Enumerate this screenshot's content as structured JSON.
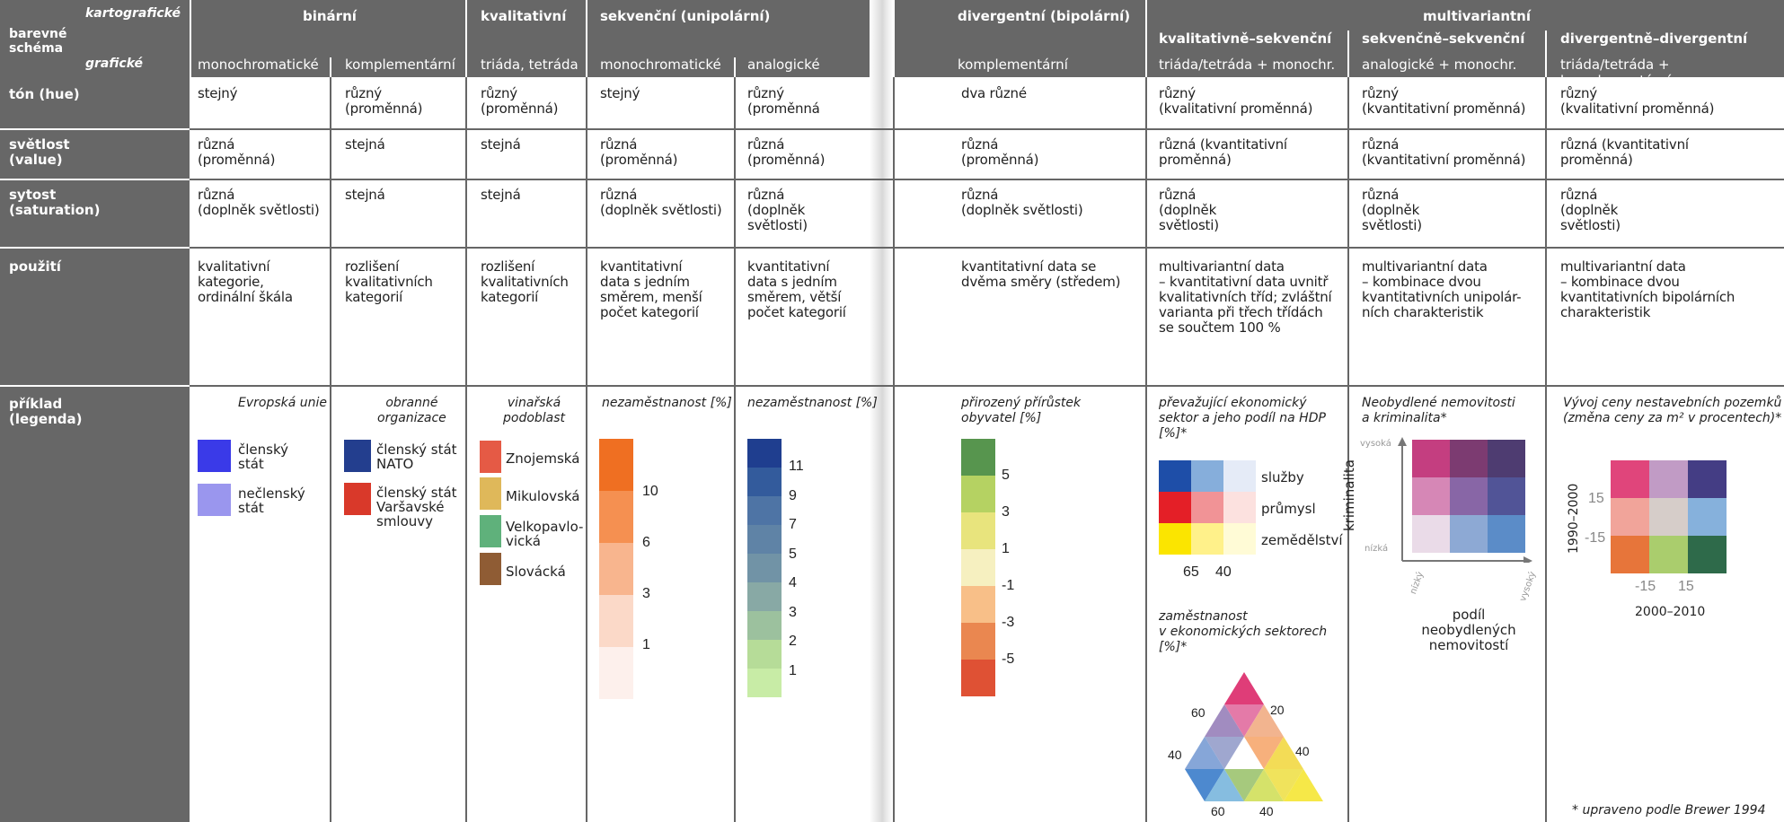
{
  "header": {
    "corner_top": "kartografické",
    "corner_mid": "barevné schéma",
    "corner_bot": "grafické",
    "groups": [
      "binární",
      "kvalitativní",
      "sekvenční (unipolární)",
      "divergentní (bipolární)",
      "multivariantní"
    ],
    "sub_groups": [
      "kvalitativně–sekvenční",
      "sekvenčně–sekvenční",
      "divergentně–divergentní"
    ],
    "cols": [
      "monochromatické",
      "komplementární",
      "triáda, tetráda",
      "monochromatické",
      "analogické",
      "komplementární",
      "triáda/tetráda + monochr.",
      "analogické + monochr.",
      "triáda/tetráda + komplementární"
    ]
  },
  "rows": {
    "ton": {
      "label_1": "tón (hue)",
      "cells": [
        "stejný",
        "různý\n(proměnná)",
        "různý\n(proměnná)",
        "stejný",
        "různý\n(proměnná",
        "dva různé",
        "různý\n(kvalitativní proměnná)",
        "různý\n(kvantitativní proměnná)",
        "různý\n(kvalitativní proměnná)"
      ]
    },
    "svetlost": {
      "label_1": "světlost",
      "label_2": "(value)",
      "cells": [
        "různá\n(proměnná)",
        "stejná",
        "stejná",
        "různá\n(proměnná)",
        "různá\n(proměnná)",
        "různá\n(proměnná)",
        "různá (kvantitativní\nproměnná)",
        "různá\n(kvantitativní proměnná)",
        "různá (kvantitativní\nproměnná)"
      ]
    },
    "sytost": {
      "label_1": "sytost",
      "label_2": "(saturation)",
      "cells": [
        "různá\n(doplněk světlosti)",
        "stejná",
        "stejná",
        "různá\n(doplněk světlosti)",
        "různá\n(doplněk\nsvětlosti)",
        "různá\n(doplněk světlosti)",
        "různá\n(doplněk\nsvětlosti)",
        "různá\n(doplněk\nsvětlosti)",
        "různá\n(doplněk\nsvětlosti)"
      ]
    },
    "pouziti": {
      "label_1": "použití",
      "cells": [
        "kvalitativní\nkategorie,\nordinální škála",
        "rozlišení\nkvalitativních\nkategorií",
        "rozlišení\nkvalitativních\nkategorií",
        "kvantitativní\ndata s jedním\nsměrem, menší\npočet kategorií",
        "kvantitativní\ndata s jedním\nsměrem, větší\npočet kategorií",
        "kvantitativní data se\ndvěma směry (středem)",
        "multivariantní data\n– kvantitativní data uvnitř\nkvalitativních tříd; zvláštní\nvarianta při třech třídách\nse součtem 100 %",
        "multivariantní data\n– kombinace dvou\nkvantitativních unipolár-\nních charakteristik",
        "multivariantní data\n– kombinace dvou\nkvantitativních bipolárních\ncharakteristik"
      ]
    },
    "priklad": {
      "label_1": "příklad",
      "label_2": "(legenda)"
    }
  },
  "examples": {
    "eu": {
      "title": "Evropská unie",
      "items": [
        {
          "label": "členský\nstát",
          "color": "#3a3ae8"
        },
        {
          "label": "nečlenský\nstát",
          "color": "#9a96ee"
        }
      ]
    },
    "nato": {
      "title": "obranné\norganizace",
      "items": [
        {
          "label": "členský stát\nNATO",
          "color": "#233e8e"
        },
        {
          "label": "členský stát\nVaršavské\nsmlouvy",
          "color": "#d9392a"
        }
      ]
    },
    "vino": {
      "title": "vinařská\npodoblast",
      "items": [
        {
          "label": "Znojemská",
          "color": "#e55a45"
        },
        {
          "label": "Mikulovská",
          "color": "#dfb85a"
        },
        {
          "label": "Velkopavlo-\nvická",
          "color": "#5fb17b"
        },
        {
          "label": "Slovácká",
          "color": "#8f5c34"
        }
      ]
    },
    "nezam1": {
      "title": "nezaměstnanost [%]",
      "colors": [
        "#ef6f22",
        "#f59051",
        "#f8b58e",
        "#fbd9c8",
        "#fdf0ec"
      ],
      "labels": [
        "10",
        "6",
        "3",
        "1"
      ]
    },
    "nezam2": {
      "title": "nezaměstnanost [%]",
      "colors": [
        "#1f3e8f",
        "#335b9c",
        "#4e74a5",
        "#5f83a6",
        "#7193a6",
        "#88a9a5",
        "#9cc19e",
        "#b6dc98",
        "#c8eca6"
      ],
      "labels": [
        "11",
        "9",
        "7",
        "5",
        "4",
        "3",
        "2",
        "1"
      ]
    },
    "prirustek": {
      "title": "přirozený přírůstek\nobyvatel [%]",
      "colors": [
        "#57954e",
        "#b5d262",
        "#e8e47d",
        "#f6f0c0",
        "#f8bf88",
        "#ea8750",
        "#df5134"
      ],
      "labels": [
        "5",
        "3",
        "1",
        "-1",
        "-3",
        "-5"
      ]
    },
    "sektor": {
      "title": "převažující ekonomický\nsektor a jeho podíl na HDP\n[%]*",
      "colors": [
        [
          "#1e4ea8",
          "#86aedb",
          "#e5ebf7"
        ],
        [
          "#e41f27",
          "#f19396",
          "#fce1df"
        ],
        [
          "#fbe500",
          "#fff18a",
          "#fffbd6"
        ]
      ],
      "rows": [
        "služby",
        "průmysl",
        "zemědělství"
      ],
      "cols": [
        "65",
        "40"
      ]
    },
    "zamestnanost": {
      "title": "zaměstnanost\nv ekonomických sektorech\n[%]*",
      "labels": [
        "60",
        "20",
        "40",
        "40",
        "60",
        "40"
      ]
    },
    "nemovitosti": {
      "title": "Neobydlené nemovitosti\na kriminalita*",
      "ylabel": "kriminalita",
      "xlabel": "podíl\nneobydlených\nnemovitostí",
      "high": "vysoká",
      "low": "nízká",
      "xlow": "nízký",
      "xhigh": "vysoký",
      "colors": [
        [
          "#c43e80",
          "#7c3b71",
          "#4e3c71"
        ],
        [
          "#d687b6",
          "#8866a6",
          "#515497"
        ],
        [
          "#eadbe8",
          "#8da9d4",
          "#5b8cc8"
        ]
      ]
    },
    "ceny": {
      "title": "Vývoj ceny nestavebních pozemků\n(změna ceny za m² v procentech)*",
      "ylabel": "1990–2000",
      "xlabel": "2000–2010",
      "yt": [
        "15",
        "-15"
      ],
      "xt": [
        "-15",
        "15"
      ],
      "colors": [
        [
          "#e0457b",
          "#c19bc5",
          "#443d84"
        ],
        [
          "#f1a49a",
          "#d6cdc9",
          "#86b1dc"
        ],
        [
          "#e7753a",
          "#aacd6d",
          "#2e6a4a"
        ]
      ],
      "footnote": "* upraveno podle Brewer 1994"
    }
  },
  "colors": {
    "header": "#676767",
    "rule": "#666666"
  }
}
